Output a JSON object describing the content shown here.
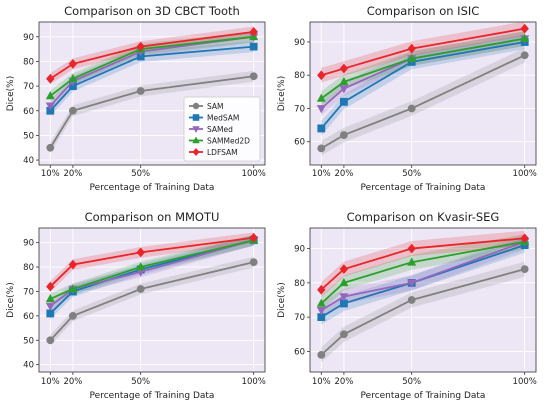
{
  "colors": {
    "plot_background": "#ede6f5",
    "SAM": "#808080",
    "MedSAM": "#1f77b4",
    "SAMed": "#9467bd",
    "SAMMed2D": "#2ca02c",
    "LDFSAM": "#e8262a"
  },
  "legend": {
    "placement": "lower-right (first panel only)",
    "entries": [
      "SAM",
      "MedSAM",
      "SAMed",
      "SAMMed2D",
      "LDFSAM"
    ]
  },
  "chart_data": [
    {
      "type": "line",
      "title": "Comparison on 3D CBCT Tooth",
      "xlabel": "Percentage of Training Data",
      "ylabel": "Dice(%)",
      "x": [
        10,
        20,
        50,
        100
      ],
      "x_tick_labels": [
        "10%",
        "20%",
        "50%",
        "100%"
      ],
      "ylim": [
        38,
        96
      ],
      "y_ticks": [
        40,
        50,
        60,
        70,
        80,
        90
      ],
      "grid": true,
      "series": [
        {
          "name": "SAM",
          "values": [
            45,
            60,
            68,
            74
          ],
          "marker": "circle"
        },
        {
          "name": "MedSAM",
          "values": [
            60,
            70,
            82,
            86
          ],
          "marker": "square"
        },
        {
          "name": "SAMed",
          "values": [
            62,
            72,
            84,
            90
          ],
          "marker": "triangle-down"
        },
        {
          "name": "SAMMed2D",
          "values": [
            66,
            73,
            85,
            90
          ],
          "marker": "triangle-up"
        },
        {
          "name": "LDFSAM",
          "values": [
            73,
            79,
            86,
            92
          ],
          "marker": "diamond"
        }
      ]
    },
    {
      "type": "line",
      "title": "Comparison on ISIC",
      "xlabel": "Percentage of Training Data",
      "ylabel": "Dice(%)",
      "x": [
        10,
        20,
        50,
        100
      ],
      "x_tick_labels": [
        "10%",
        "20%",
        "50%",
        "100%"
      ],
      "ylim": [
        53,
        96
      ],
      "y_ticks": [
        60,
        70,
        80,
        90
      ],
      "grid": true,
      "series": [
        {
          "name": "SAM",
          "values": [
            58,
            62,
            70,
            86
          ],
          "marker": "circle"
        },
        {
          "name": "MedSAM",
          "values": [
            64,
            72,
            84,
            90
          ],
          "marker": "square"
        },
        {
          "name": "SAMed",
          "values": [
            70,
            76,
            85,
            91
          ],
          "marker": "triangle-down"
        },
        {
          "name": "SAMMed2D",
          "values": [
            73,
            78,
            85,
            91
          ],
          "marker": "triangle-up"
        },
        {
          "name": "LDFSAM",
          "values": [
            80,
            82,
            88,
            94
          ],
          "marker": "diamond"
        }
      ]
    },
    {
      "type": "line",
      "title": "Comparison on MMOTU",
      "xlabel": "Percentage of Training Data",
      "ylabel": "Dice(%)",
      "x": [
        10,
        20,
        50,
        100
      ],
      "x_tick_labels": [
        "10%",
        "20%",
        "50%",
        "100%"
      ],
      "ylim": [
        37,
        96
      ],
      "y_ticks": [
        40,
        50,
        60,
        70,
        80,
        90
      ],
      "grid": true,
      "series": [
        {
          "name": "SAM",
          "values": [
            50,
            60,
            71,
            82
          ],
          "marker": "circle"
        },
        {
          "name": "MedSAM",
          "values": [
            61,
            70,
            79,
            91
          ],
          "marker": "square"
        },
        {
          "name": "SAMed",
          "values": [
            64,
            71,
            78,
            91
          ],
          "marker": "triangle-down"
        },
        {
          "name": "SAMMed2D",
          "values": [
            67,
            71,
            80,
            91
          ],
          "marker": "triangle-up"
        },
        {
          "name": "LDFSAM",
          "values": [
            72,
            81,
            86,
            92
          ],
          "marker": "diamond"
        }
      ]
    },
    {
      "type": "line",
      "title": "Comparison on Kvasir-SEG",
      "xlabel": "Percentage of Training Data",
      "ylabel": "Dice(%)",
      "x": [
        10,
        20,
        50,
        100
      ],
      "x_tick_labels": [
        "10%",
        "20%",
        "50%",
        "100%"
      ],
      "ylim": [
        54,
        96
      ],
      "y_ticks": [
        60,
        70,
        80,
        90
      ],
      "grid": true,
      "series": [
        {
          "name": "SAM",
          "values": [
            59,
            65,
            75,
            84
          ],
          "marker": "circle"
        },
        {
          "name": "MedSAM",
          "values": [
            70,
            74,
            80,
            91
          ],
          "marker": "square"
        },
        {
          "name": "SAMed",
          "values": [
            72,
            76,
            80,
            92
          ],
          "marker": "triangle-down"
        },
        {
          "name": "SAMMed2D",
          "values": [
            74,
            80,
            86,
            92
          ],
          "marker": "triangle-up"
        },
        {
          "name": "LDFSAM",
          "values": [
            78,
            84,
            90,
            93
          ],
          "marker": "diamond"
        }
      ]
    }
  ]
}
